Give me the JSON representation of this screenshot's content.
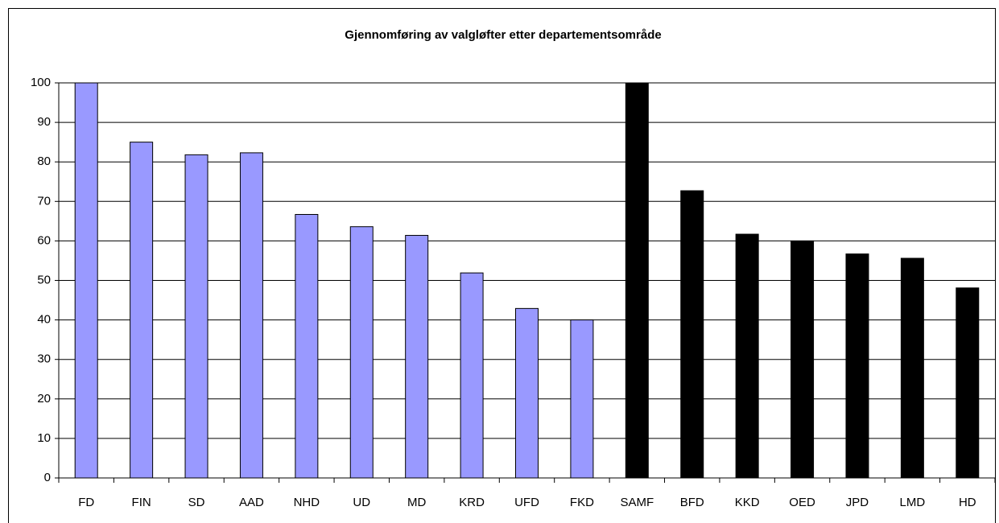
{
  "chart_data": {
    "type": "bar",
    "title": "Gjennomføring av valgløfter etter departementsområde",
    "categories": [
      "FD",
      "FIN",
      "SD",
      "AAD",
      "NHD",
      "UD",
      "MD",
      "KRD",
      "UFD",
      "FKD",
      "SAMF",
      "BFD",
      "KKD",
      "OED",
      "JPD",
      "LMD",
      "HD"
    ],
    "values": [
      100,
      85,
      81.8,
      82.3,
      66.7,
      63.6,
      61.4,
      51.9,
      42.9,
      40,
      100,
      72.7,
      61.7,
      60,
      56.7,
      55.6,
      48.1
    ],
    "colors": [
      "#9999ff",
      "#9999ff",
      "#9999ff",
      "#9999ff",
      "#9999ff",
      "#9999ff",
      "#9999ff",
      "#9999ff",
      "#9999ff",
      "#9999ff",
      "#000000",
      "#000000",
      "#000000",
      "#000000",
      "#000000",
      "#000000",
      "#000000"
    ],
    "ylim": [
      0,
      100
    ],
    "yticks": [
      0,
      10,
      20,
      30,
      40,
      50,
      60,
      70,
      80,
      90,
      100
    ],
    "grid": true
  }
}
